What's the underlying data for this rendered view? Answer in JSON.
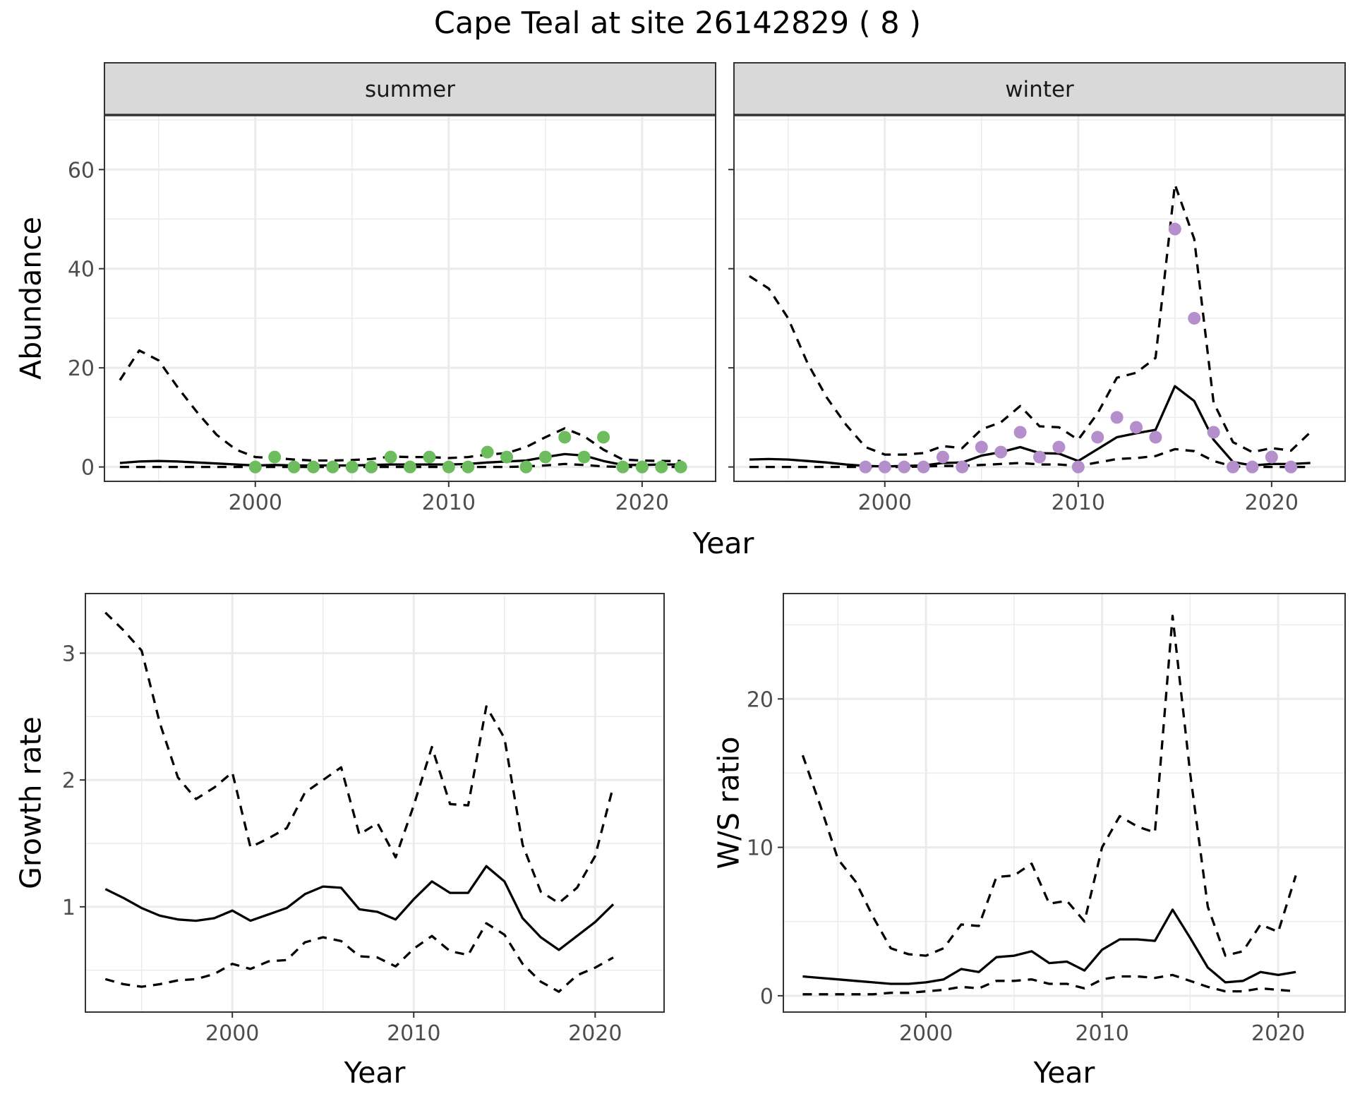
{
  "figure": {
    "title": "Cape Teal at site 26142829 ( 8 )"
  },
  "chart_data": [
    {
      "type": "line",
      "panel": "summer",
      "strip_label": "summer",
      "xlabel": "Year",
      "ylabel": "Abundance",
      "xlim": [
        1992.2,
        2023.8
      ],
      "ylim": [
        -2.9,
        71
      ],
      "x_ticks": [
        2000,
        2010,
        2020
      ],
      "y_ticks": [
        0,
        20,
        40,
        60
      ],
      "grid": true,
      "legend": "none",
      "points_color": "#6dbd5e",
      "series": [
        {
          "role": "mean",
          "style": "solid",
          "x": [
            1993,
            1994,
            1995,
            1996,
            1997,
            1998,
            1999,
            2000,
            2001,
            2002,
            2003,
            2004,
            2005,
            2006,
            2007,
            2008,
            2009,
            2010,
            2011,
            2012,
            2013,
            2014,
            2015,
            2016,
            2017,
            2018,
            2019,
            2020,
            2021,
            2022
          ],
          "y": [
            0.8,
            1.1,
            1.2,
            1.1,
            0.9,
            0.7,
            0.5,
            0.3,
            0.4,
            0.3,
            0.3,
            0.3,
            0.3,
            0.4,
            0.5,
            0.5,
            0.5,
            0.5,
            0.6,
            0.9,
            1.1,
            1.3,
            2.0,
            2.6,
            2.3,
            1.2,
            0.4,
            0.4,
            0.5,
            0.5
          ]
        },
        {
          "role": "upper",
          "style": "dashed",
          "x": [
            1993,
            1994,
            1995,
            1996,
            1997,
            1998,
            1999,
            2000,
            2001,
            2002,
            2003,
            2004,
            2005,
            2006,
            2007,
            2008,
            2009,
            2010,
            2011,
            2012,
            2013,
            2014,
            2015,
            2016,
            2017,
            2018,
            2019,
            2020,
            2021,
            2022
          ],
          "y": [
            17.5,
            23.5,
            21.5,
            16,
            11,
            6.5,
            3.5,
            2,
            1.8,
            1.5,
            1.3,
            1.3,
            1.4,
            1.6,
            2.1,
            2.0,
            2.0,
            1.8,
            2.0,
            2.5,
            2.8,
            4.0,
            6.0,
            7.8,
            6.2,
            3.5,
            1.5,
            1.3,
            1.2,
            1.2
          ]
        },
        {
          "role": "lower",
          "style": "dashed",
          "x": [
            1993,
            1994,
            1995,
            1996,
            1997,
            1998,
            1999,
            2000,
            2001,
            2002,
            2003,
            2004,
            2005,
            2006,
            2007,
            2008,
            2009,
            2010,
            2011,
            2012,
            2013,
            2014,
            2015,
            2016,
            2017,
            2018,
            2019,
            2020,
            2021,
            2022
          ],
          "y": [
            0,
            0,
            0,
            0,
            0,
            0,
            0,
            0,
            0,
            0,
            0,
            0,
            0,
            0,
            0,
            0,
            0,
            0,
            0,
            0,
            0,
            0.1,
            0.3,
            0.6,
            0.4,
            0.1,
            0,
            0,
            0,
            0
          ]
        }
      ],
      "points": {
        "x": [
          2000,
          2001,
          2002,
          2003,
          2004,
          2005,
          2006,
          2007,
          2008,
          2009,
          2010,
          2011,
          2012,
          2013,
          2014,
          2015,
          2016,
          2017,
          2018,
          2019,
          2020,
          2021,
          2022
        ],
        "y": [
          0,
          2,
          0,
          0,
          0,
          0,
          0,
          2,
          0,
          2,
          0,
          0,
          3,
          2,
          0,
          2,
          6,
          2,
          6,
          0,
          0,
          0,
          0
        ]
      }
    },
    {
      "type": "line",
      "panel": "winter",
      "strip_label": "winter",
      "xlabel": "Year",
      "ylabel": "Abundance",
      "xlim": [
        1992.2,
        2023.8
      ],
      "ylim": [
        -2.9,
        71
      ],
      "x_ticks": [
        2000,
        2010,
        2020
      ],
      "y_ticks": [
        0,
        20,
        40,
        60
      ],
      "grid": true,
      "legend": "none",
      "points_color": "#b48fcb",
      "series": [
        {
          "role": "mean",
          "style": "solid",
          "x": [
            1993,
            1994,
            1995,
            1996,
            1997,
            1998,
            1999,
            2000,
            2001,
            2002,
            2003,
            2004,
            2005,
            2006,
            2007,
            2008,
            2009,
            2010,
            2011,
            2012,
            2013,
            2014,
            2015,
            2016,
            2017,
            2018,
            2019,
            2020,
            2021,
            2022
          ],
          "y": [
            1.5,
            1.6,
            1.5,
            1.2,
            0.9,
            0.5,
            0.2,
            0.1,
            0.2,
            0.3,
            0.8,
            0.9,
            2.3,
            3.0,
            4.0,
            2.8,
            2.7,
            1.2,
            3.6,
            6.0,
            6.8,
            7.5,
            16.3,
            13.3,
            5.5,
            1.0,
            0.3,
            0.6,
            0.6,
            0.8
          ]
        },
        {
          "role": "upper",
          "style": "dashed",
          "x": [
            1993,
            1994,
            1995,
            1996,
            1997,
            1998,
            1999,
            2000,
            2001,
            2002,
            2003,
            2004,
            2005,
            2006,
            2007,
            2008,
            2009,
            2010,
            2011,
            2012,
            2013,
            2014,
            2015,
            2016,
            2017,
            2018,
            2019,
            2020,
            2021,
            2022
          ],
          "y": [
            38.5,
            36,
            30,
            21,
            14,
            8.5,
            4,
            2.5,
            2.5,
            2.8,
            4.2,
            3.8,
            7.6,
            9.0,
            12.3,
            8.2,
            8.0,
            5.5,
            10.8,
            18.0,
            19.0,
            22.0,
            57.0,
            46.0,
            13.0,
            5.0,
            3.0,
            3.8,
            3.3,
            7.0
          ]
        },
        {
          "role": "lower",
          "style": "dashed",
          "x": [
            1993,
            1994,
            1995,
            1996,
            1997,
            1998,
            1999,
            2000,
            2001,
            2002,
            2003,
            2004,
            2005,
            2006,
            2007,
            2008,
            2009,
            2010,
            2011,
            2012,
            2013,
            2014,
            2015,
            2016,
            2017,
            2018,
            2019,
            2020,
            2021,
            2022
          ],
          "y": [
            0,
            0,
            0,
            0,
            0,
            0,
            0,
            0,
            0,
            0.1,
            0.2,
            0.2,
            0.4,
            0.6,
            0.8,
            0.5,
            0.5,
            0.2,
            0.9,
            1.6,
            1.8,
            2.2,
            3.6,
            3.2,
            1.2,
            0.1,
            0,
            0,
            0,
            0
          ]
        }
      ],
      "points": {
        "x": [
          1999,
          2000,
          2001,
          2002,
          2003,
          2004,
          2005,
          2006,
          2007,
          2008,
          2009,
          2010,
          2011,
          2012,
          2013,
          2014,
          2015,
          2016,
          2017,
          2018,
          2019,
          2020,
          2021
        ],
        "y": [
          0,
          0,
          0,
          0,
          2,
          0,
          4,
          3,
          7,
          2,
          4,
          0,
          6,
          10,
          8,
          6,
          48,
          30,
          7,
          0,
          0,
          2,
          0
        ]
      }
    },
    {
      "type": "line",
      "panel": "growth",
      "xlabel": "Year",
      "ylabel": "Growth rate",
      "xlim": [
        1991.9,
        2023.8
      ],
      "ylim": [
        0.17,
        3.47
      ],
      "x_ticks": [
        2000,
        2010,
        2020
      ],
      "y_ticks": [
        1,
        2,
        3
      ],
      "grid": true,
      "legend": "none",
      "series": [
        {
          "role": "mean",
          "style": "solid",
          "x": [
            1993,
            1994,
            1995,
            1996,
            1997,
            1998,
            1999,
            2000,
            2001,
            2002,
            2003,
            2004,
            2005,
            2006,
            2007,
            2008,
            2009,
            2010,
            2011,
            2012,
            2013,
            2014,
            2015,
            2016,
            2017,
            2018,
            2019,
            2020,
            2021
          ],
          "y": [
            1.14,
            1.07,
            0.99,
            0.93,
            0.9,
            0.89,
            0.91,
            0.97,
            0.89,
            0.94,
            0.99,
            1.1,
            1.16,
            1.15,
            0.98,
            0.96,
            0.9,
            1.06,
            1.2,
            1.11,
            1.11,
            1.32,
            1.2,
            0.91,
            0.76,
            0.66,
            0.77,
            0.88,
            1.02
          ]
        },
        {
          "role": "upper",
          "style": "dashed",
          "x": [
            1993,
            1994,
            1995,
            1996,
            1997,
            1998,
            1999,
            2000,
            2001,
            2002,
            2003,
            2004,
            2005,
            2006,
            2007,
            2008,
            2009,
            2010,
            2011,
            2012,
            2013,
            2014,
            2015,
            2016,
            2017,
            2018,
            2019,
            2020,
            2021
          ],
          "y": [
            3.32,
            3.18,
            3.02,
            2.45,
            2.02,
            1.85,
            1.94,
            2.06,
            1.47,
            1.54,
            1.62,
            1.9,
            2.0,
            2.1,
            1.57,
            1.66,
            1.39,
            1.8,
            2.26,
            1.81,
            1.8,
            2.58,
            2.33,
            1.49,
            1.12,
            1.03,
            1.15,
            1.4,
            1.95
          ]
        },
        {
          "role": "lower",
          "style": "dashed",
          "x": [
            1993,
            1994,
            1995,
            1996,
            1997,
            1998,
            1999,
            2000,
            2001,
            2002,
            2003,
            2004,
            2005,
            2006,
            2007,
            2008,
            2009,
            2010,
            2011,
            2012,
            2013,
            2014,
            2015,
            2016,
            2017,
            2018,
            2019,
            2020,
            2021
          ],
          "y": [
            0.43,
            0.39,
            0.37,
            0.39,
            0.42,
            0.43,
            0.47,
            0.55,
            0.51,
            0.57,
            0.58,
            0.72,
            0.76,
            0.73,
            0.61,
            0.6,
            0.53,
            0.67,
            0.77,
            0.65,
            0.62,
            0.87,
            0.78,
            0.55,
            0.41,
            0.33,
            0.46,
            0.52,
            0.6
          ]
        }
      ]
    },
    {
      "type": "line",
      "panel": "ratio",
      "xlabel": "Year",
      "ylabel": "W/S ratio",
      "xlim": [
        1991.9,
        2023.8
      ],
      "ylim": [
        -1.1,
        27.1
      ],
      "x_ticks": [
        2000,
        2010,
        2020
      ],
      "y_ticks": [
        0,
        10,
        20
      ],
      "grid": true,
      "legend": "none",
      "series": [
        {
          "role": "mean",
          "style": "solid",
          "x": [
            1993,
            1994,
            1995,
            1996,
            1997,
            1998,
            1999,
            2000,
            2001,
            2002,
            2003,
            2004,
            2005,
            2006,
            2007,
            2008,
            2009,
            2010,
            2011,
            2012,
            2013,
            2014,
            2015,
            2016,
            2017,
            2018,
            2019,
            2020,
            2021
          ],
          "y": [
            1.3,
            1.2,
            1.1,
            1.0,
            0.9,
            0.8,
            0.8,
            0.9,
            1.1,
            1.8,
            1.6,
            2.6,
            2.7,
            3.0,
            2.2,
            2.3,
            1.7,
            3.1,
            3.8,
            3.8,
            3.7,
            5.8,
            3.9,
            1.9,
            0.9,
            1.0,
            1.6,
            1.4,
            1.6
          ]
        },
        {
          "role": "upper",
          "style": "dashed",
          "x": [
            1993,
            1994,
            1995,
            1996,
            1997,
            1998,
            1999,
            2000,
            2001,
            2002,
            2003,
            2004,
            2005,
            2006,
            2007,
            2008,
            2009,
            2010,
            2011,
            2012,
            2013,
            2014,
            2015,
            2016,
            2017,
            2018,
            2019,
            2020,
            2021
          ],
          "y": [
            16.2,
            12.8,
            9.2,
            7.7,
            5.3,
            3.2,
            2.8,
            2.7,
            3.2,
            4.8,
            4.7,
            8.0,
            8.1,
            8.9,
            6.2,
            6.4,
            5.0,
            10.0,
            12.1,
            11.4,
            11.0,
            25.6,
            15.0,
            6.0,
            2.7,
            3.0,
            4.8,
            4.3,
            8.1
          ]
        },
        {
          "role": "lower",
          "style": "dashed",
          "x": [
            1993,
            1994,
            1995,
            1996,
            1997,
            1998,
            1999,
            2000,
            2001,
            2002,
            2003,
            2004,
            2005,
            2006,
            2007,
            2008,
            2009,
            2010,
            2011,
            2012,
            2013,
            2014,
            2015,
            2016,
            2017,
            2018,
            2019,
            2020,
            2021
          ],
          "y": [
            0.1,
            0.1,
            0.1,
            0.1,
            0.1,
            0.2,
            0.2,
            0.3,
            0.4,
            0.6,
            0.5,
            1.0,
            1.0,
            1.1,
            0.8,
            0.8,
            0.5,
            1.1,
            1.3,
            1.3,
            1.2,
            1.4,
            1.0,
            0.6,
            0.3,
            0.3,
            0.5,
            0.4,
            0.3
          ]
        }
      ]
    }
  ]
}
